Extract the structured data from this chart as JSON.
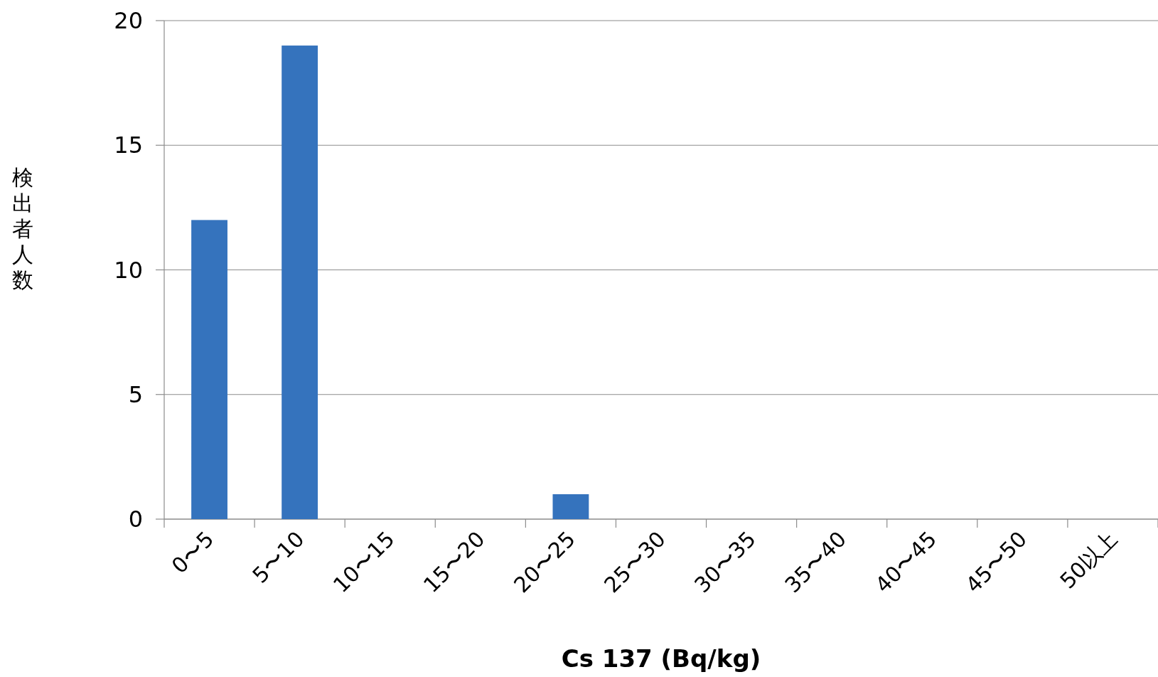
{
  "chart_data": {
    "type": "bar",
    "xlabel": "Cs 137 (Bq/kg)",
    "ylabel": "検出者人数",
    "categories": [
      "0〜5",
      "5〜10",
      "10〜15",
      "15〜20",
      "20〜25",
      "25〜30",
      "30〜35",
      "35〜40",
      "40〜45",
      "45〜50",
      "50以上"
    ],
    "values": [
      12,
      19,
      0,
      0,
      1,
      0,
      0,
      0,
      0,
      0,
      0
    ],
    "color": "#3573bd",
    "ylim": [
      0,
      20
    ],
    "yticks": [
      0,
      5,
      10,
      15,
      20
    ],
    "grid": "y"
  }
}
